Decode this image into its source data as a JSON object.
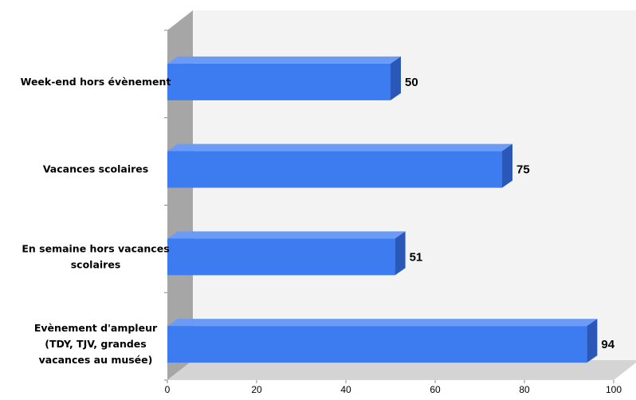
{
  "chart_data": {
    "type": "bar",
    "orientation": "horizontal",
    "three_d": true,
    "categories": [
      [
        "Week-end hors évènement"
      ],
      [
        "Vacances scolaires"
      ],
      [
        "En semaine hors vacances",
        "scolaires"
      ],
      [
        "Evènement d'ampleur",
        "(TDY, TJV, grandes",
        "vacances au musée)"
      ]
    ],
    "values": [
      50,
      75,
      51,
      94
    ],
    "data_labels": [
      "50",
      "75",
      "51",
      "94"
    ],
    "xlim": [
      0,
      100
    ],
    "x_ticks": [
      0,
      20,
      40,
      60,
      80,
      100
    ],
    "x_tick_labels": [
      "0",
      "20",
      "40",
      "60",
      "80",
      "100"
    ],
    "title": "",
    "xlabel": "",
    "ylabel": "",
    "grid": false,
    "legend": "none",
    "colors": {
      "bar_front": "#3D7BF0",
      "bar_top": "#6C9BF5",
      "bar_side": "#2A58B8",
      "wall": "#F3F3F3",
      "wall_side": "#A6A6A6",
      "floor": "#D4D4D4"
    }
  }
}
